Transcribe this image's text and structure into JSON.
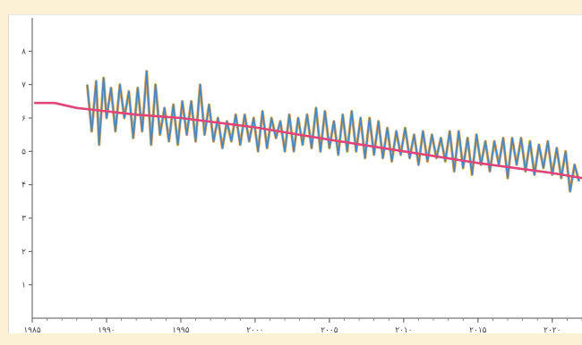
{
  "chart_data": {
    "type": "line",
    "title": "",
    "xlabel": "",
    "ylabel": "",
    "xlim": [
      1985,
      2022
    ],
    "ylim": [
      0,
      9
    ],
    "x_ticks": [
      {
        "value": 1985,
        "label": "۱۹۸۵"
      },
      {
        "value": 1990,
        "label": "۱۹۹۰"
      },
      {
        "value": 1995,
        "label": "۱۹۹۵"
      },
      {
        "value": 2000,
        "label": "۲۰۰۰"
      },
      {
        "value": 2005,
        "label": "۲۰۰۵"
      },
      {
        "value": 2010,
        "label": "۲۰۱۰"
      },
      {
        "value": 2015,
        "label": "۲۰۱۵"
      },
      {
        "value": 2020,
        "label": "۲۰۲۰"
      }
    ],
    "y_ticks": [
      {
        "value": 1,
        "label": "۱"
      },
      {
        "value": 2,
        "label": "۲"
      },
      {
        "value": 3,
        "label": "۳"
      },
      {
        "value": 4,
        "label": "۴"
      },
      {
        "value": 5,
        "label": "۵"
      },
      {
        "value": 6,
        "label": "۶"
      },
      {
        "value": 7,
        "label": "۷"
      },
      {
        "value": 8,
        "label": "۸"
      }
    ],
    "grid": false,
    "series": [
      {
        "role": "monthly",
        "color": "#4b86c0",
        "accent_color": "#e0a23a",
        "x": [
          1988.7,
          1989.0,
          1989.3,
          1989.5,
          1989.8,
          1990.0,
          1990.3,
          1990.6,
          1990.9,
          1991.2,
          1991.5,
          1991.8,
          1992.1,
          1992.4,
          1992.7,
          1993.0,
          1993.3,
          1993.6,
          1993.9,
          1994.2,
          1994.5,
          1994.8,
          1995.1,
          1995.4,
          1995.7,
          1996.0,
          1996.3,
          1996.6,
          1996.9,
          1997.2,
          1997.5,
          1997.8,
          1998.1,
          1998.4,
          1998.7,
          1999.0,
          1999.3,
          1999.6,
          1999.9,
          2000.2,
          2000.5,
          2000.8,
          2001.1,
          2001.4,
          2001.7,
          2002.0,
          2002.3,
          2002.6,
          2002.9,
          2003.2,
          2003.5,
          2003.8,
          2004.1,
          2004.4,
          2004.7,
          2005.0,
          2005.3,
          2005.6,
          2005.9,
          2006.2,
          2006.5,
          2006.8,
          2007.1,
          2007.4,
          2007.7,
          2008.0,
          2008.3,
          2008.6,
          2008.9,
          2009.2,
          2009.5,
          2009.8,
          2010.1,
          2010.4,
          2010.7,
          2011.0,
          2011.3,
          2011.6,
          2011.9,
          2012.2,
          2012.5,
          2012.8,
          2013.1,
          2013.4,
          2013.7,
          2014.0,
          2014.3,
          2014.6,
          2014.9,
          2015.2,
          2015.5,
          2015.8,
          2016.1,
          2016.4,
          2016.7,
          2017.0,
          2017.3,
          2017.6,
          2017.9,
          2018.2,
          2018.5,
          2018.8,
          2019.1,
          2019.4,
          2019.7,
          2020.0,
          2020.3,
          2020.6,
          2020.9,
          2021.2,
          2021.5,
          2021.8
        ],
        "y": [
          7.0,
          5.6,
          7.1,
          5.2,
          7.2,
          6.0,
          6.9,
          5.6,
          7.0,
          6.0,
          6.8,
          5.4,
          6.9,
          5.6,
          7.4,
          5.2,
          7.0,
          5.5,
          6.3,
          5.3,
          6.4,
          5.2,
          6.5,
          5.5,
          6.5,
          5.3,
          7.0,
          5.5,
          6.4,
          5.3,
          6.0,
          5.1,
          5.9,
          5.3,
          6.1,
          5.2,
          6.1,
          5.3,
          6.0,
          5.0,
          6.2,
          5.1,
          6.0,
          5.4,
          5.9,
          5.0,
          6.1,
          5.0,
          6.0,
          5.2,
          6.1,
          5.1,
          6.3,
          5.0,
          6.2,
          5.1,
          5.9,
          4.9,
          6.1,
          5.0,
          6.2,
          5.0,
          6.0,
          4.8,
          6.0,
          4.9,
          5.9,
          4.8,
          5.7,
          4.7,
          5.6,
          4.9,
          5.7,
          4.8,
          5.5,
          4.6,
          5.6,
          4.7,
          5.5,
          4.8,
          5.4,
          4.7,
          5.6,
          4.4,
          5.6,
          4.5,
          5.4,
          4.3,
          5.5,
          4.6,
          5.3,
          4.4,
          5.3,
          4.6,
          5.4,
          4.2,
          5.4,
          4.6,
          5.4,
          4.4,
          5.3,
          4.3,
          5.2,
          4.5,
          5.3,
          4.3,
          5.1,
          4.2,
          5.0,
          3.8,
          4.6,
          4.1
        ]
      },
      {
        "role": "trend",
        "color": "#e0457a",
        "x": [
          1985.2,
          1986.5,
          1988,
          1990,
          1992,
          1995,
          2000,
          2005,
          2010,
          2015,
          2020,
          2022
        ],
        "y": [
          6.45,
          6.45,
          6.3,
          6.2,
          6.1,
          6.0,
          5.72,
          5.35,
          5.0,
          4.65,
          4.35,
          4.2
        ]
      }
    ]
  }
}
